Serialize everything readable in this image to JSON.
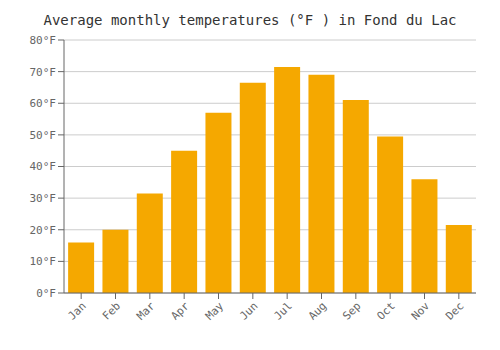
{
  "chart_data": {
    "type": "bar",
    "title": "Average monthly temperatures (°F ) in Fond du Lac",
    "categories": [
      "Jan",
      "Feb",
      "Mar",
      "Apr",
      "May",
      "Jun",
      "Jul",
      "Aug",
      "Sep",
      "Oct",
      "Nov",
      "Dec"
    ],
    "values": [
      16,
      20,
      31.5,
      45,
      57,
      66.5,
      71.5,
      69,
      61,
      49.5,
      36,
      21.5
    ],
    "color": "#F5A800",
    "ylim": [
      0,
      80
    ],
    "yticks": [
      {
        "value": 0,
        "label": "0°F"
      },
      {
        "value": 10,
        "label": "10°F"
      },
      {
        "value": 20,
        "label": "20°F"
      },
      {
        "value": 30,
        "label": "30°F"
      },
      {
        "value": 40,
        "label": "40°F"
      },
      {
        "value": 50,
        "label": "50°F"
      },
      {
        "value": 60,
        "label": "60°F"
      },
      {
        "value": 70,
        "label": "70°F"
      },
      {
        "value": 80,
        "label": "80°F"
      }
    ],
    "grid": true
  }
}
